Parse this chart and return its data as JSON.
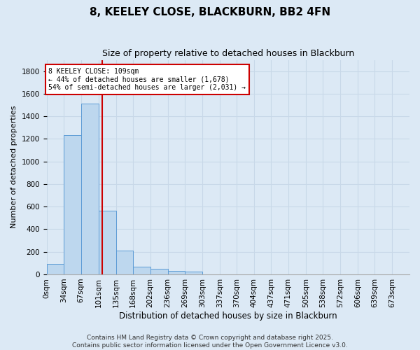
{
  "title": "8, KEELEY CLOSE, BLACKBURN, BB2 4FN",
  "subtitle": "Size of property relative to detached houses in Blackburn",
  "xlabel": "Distribution of detached houses by size in Blackburn",
  "ylabel": "Number of detached properties",
  "bin_edges": [
    0,
    34,
    67,
    101,
    135,
    168,
    202,
    236,
    269,
    303,
    337,
    370,
    404,
    437,
    471,
    505,
    538,
    572,
    606,
    639,
    673
  ],
  "bin_labels": [
    "0sqm",
    "34sqm",
    "67sqm",
    "101sqm",
    "135sqm",
    "168sqm",
    "202sqm",
    "236sqm",
    "269sqm",
    "303sqm",
    "337sqm",
    "370sqm",
    "404sqm",
    "437sqm",
    "471sqm",
    "505sqm",
    "538sqm",
    "572sqm",
    "606sqm",
    "639sqm",
    "673sqm"
  ],
  "bar_heights": [
    93,
    1232,
    1510,
    565,
    210,
    68,
    47,
    30,
    22,
    0,
    0,
    0,
    0,
    0,
    0,
    0,
    0,
    0,
    0,
    0
  ],
  "bar_color": "#bdd7ee",
  "bar_edge_color": "#5b9bd5",
  "property_sqm": 109,
  "bin_width": 33,
  "property_line_color": "#cc0000",
  "annotation_text": "8 KEELEY CLOSE: 109sqm\n← 44% of detached houses are smaller (1,678)\n54% of semi-detached houses are larger (2,031) →",
  "annotation_box_color": "#ffffff",
  "annotation_box_edge": "#cc0000",
  "ylim": [
    0,
    1900
  ],
  "yticks": [
    0,
    200,
    400,
    600,
    800,
    1000,
    1200,
    1400,
    1600,
    1800
  ],
  "background_color": "#dce9f5",
  "grid_color": "#c8d8e8",
  "footer_line1": "Contains HM Land Registry data © Crown copyright and database right 2025.",
  "footer_line2": "Contains public sector information licensed under the Open Government Licence v3.0.",
  "title_fontsize": 11,
  "subtitle_fontsize": 9,
  "xlabel_fontsize": 8.5,
  "ylabel_fontsize": 8,
  "tick_fontsize": 7.5,
  "footer_fontsize": 6.5
}
